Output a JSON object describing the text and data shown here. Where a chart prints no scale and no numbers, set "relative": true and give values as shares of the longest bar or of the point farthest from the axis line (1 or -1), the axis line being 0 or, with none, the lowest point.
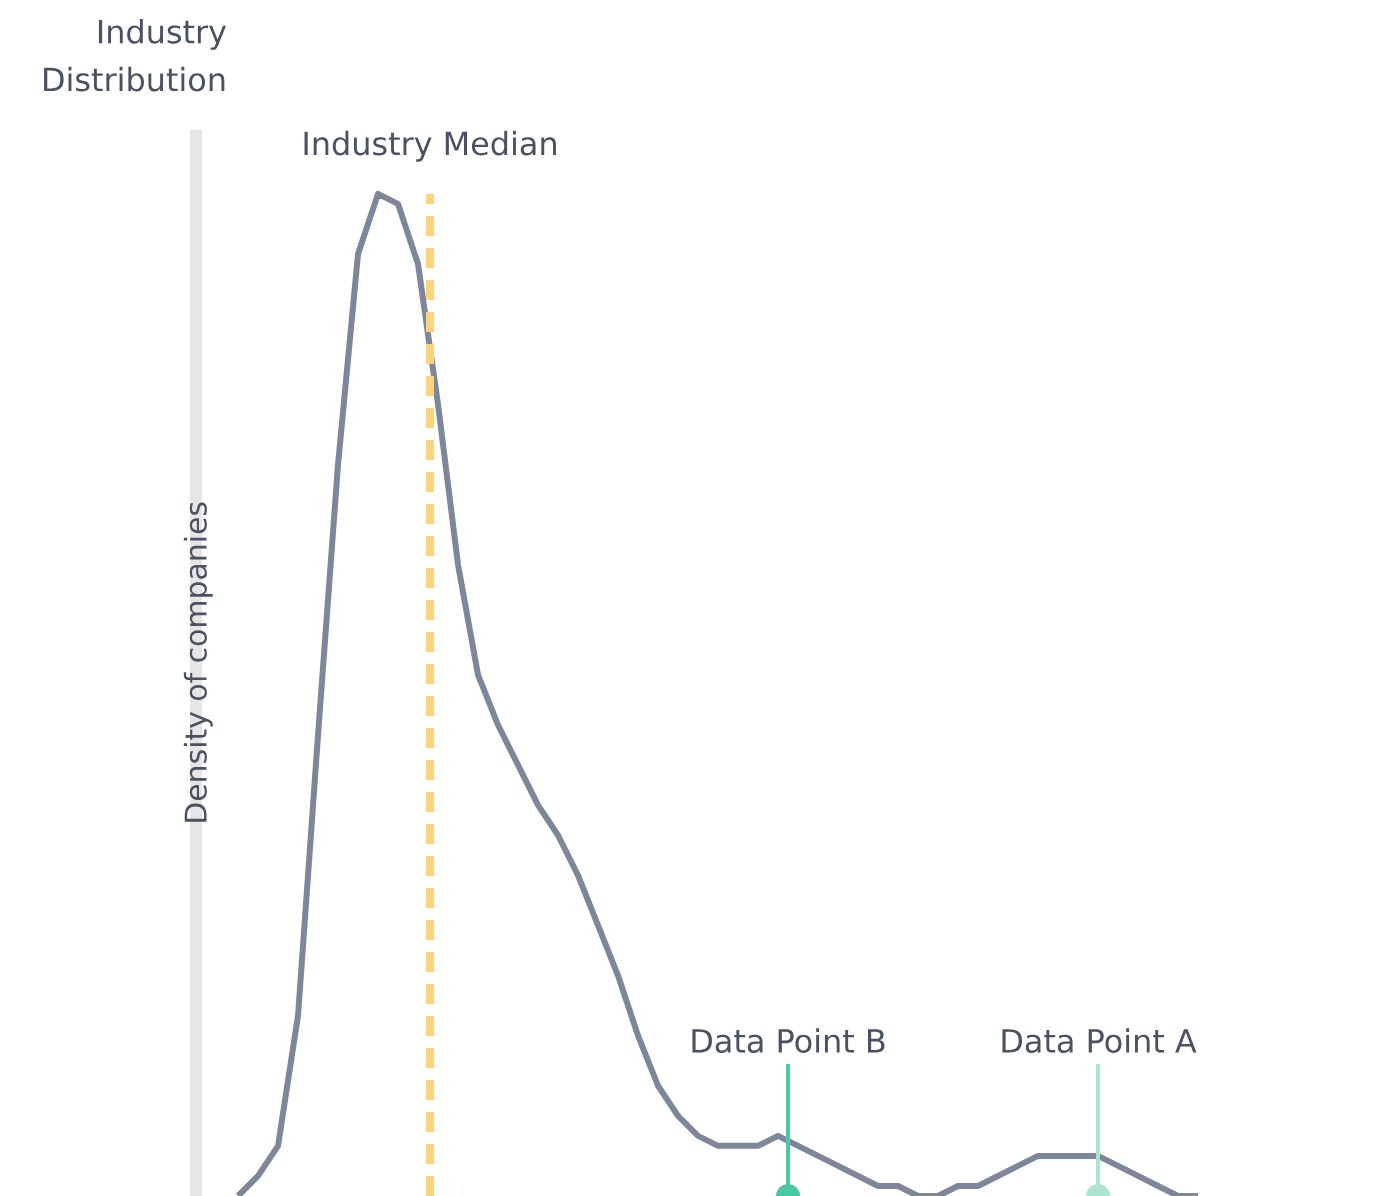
{
  "chart_data": {
    "type": "line",
    "title": "Industry Distribution",
    "ylabel": "Density of companies",
    "relative": true,
    "marker": "none",
    "line_style": "solid",
    "categories": [
      null,
      null,
      null,
      null,
      null,
      null,
      null,
      null,
      null,
      null,
      null,
      null,
      null,
      null,
      null,
      null,
      null,
      null,
      null,
      null,
      null,
      null,
      null,
      null,
      null,
      null,
      null,
      null,
      null,
      null,
      null,
      null,
      null,
      null,
      null,
      null,
      null,
      null,
      null,
      null,
      null,
      null,
      null,
      null,
      null,
      null,
      null,
      null,
      null
    ],
    "series": [
      {
        "color": "#7d8799",
        "values": [
          0,
          0.02,
          0.05,
          0.18,
          0.46,
          0.73,
          0.94,
          1,
          0.99,
          0.93,
          0.79,
          0.63,
          0.52,
          0.47,
          0.43,
          0.39,
          0.36,
          0.32,
          0.27,
          0.22,
          0.16,
          0.11,
          0.08,
          0.06,
          0.05,
          0.05,
          0.05,
          0.06,
          0.05,
          0.04,
          0.03,
          0.02,
          0.01,
          0.01,
          0,
          0,
          0.01,
          0.01,
          0.02,
          0.03,
          0.04,
          0.04,
          0.04,
          0.04,
          0.03,
          0.02,
          0.01,
          0,
          0
        ]
      }
    ],
    "annotations": [
      "Industry Median",
      "Data Point B",
      "Data Point A"
    ]
  }
}
